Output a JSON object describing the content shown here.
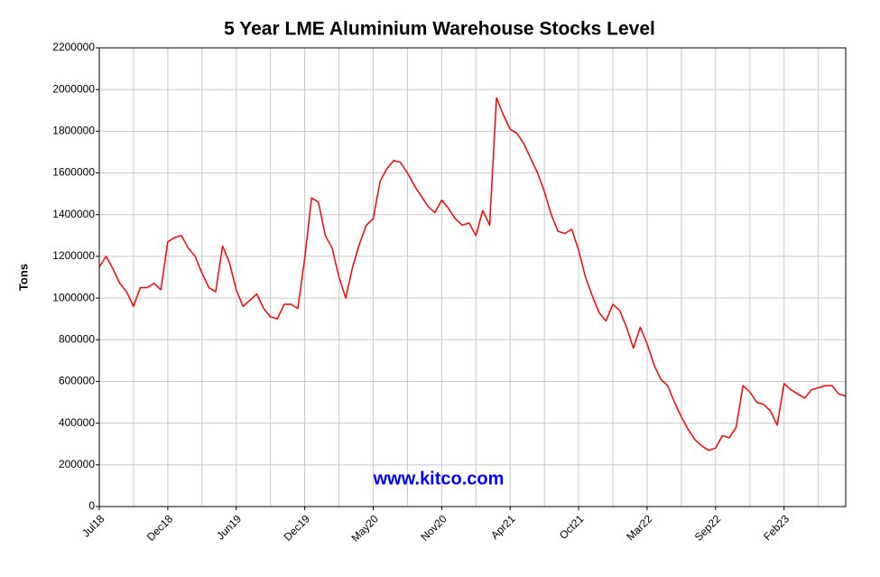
{
  "chart_data": {
    "type": "line",
    "title": "5 Year LME Aluminium Warehouse Stocks Level",
    "y_label": "Tons",
    "watermark": "www.kitco.com",
    "xlim": [
      0,
      109
    ],
    "xticks": [
      {
        "value": 0,
        "label": "Jul18"
      },
      {
        "value": 10,
        "label": "Dec18"
      },
      {
        "value": 20,
        "label": "Jun19"
      },
      {
        "value": 30,
        "label": "Dec19"
      },
      {
        "value": 40,
        "label": "May20"
      },
      {
        "value": 50,
        "label": "Nov20"
      },
      {
        "value": 60,
        "label": "Apr21"
      },
      {
        "value": 70,
        "label": "Oct21"
      },
      {
        "value": 80,
        "label": "Mar22"
      },
      {
        "value": 90,
        "label": "Sep22"
      },
      {
        "value": 100,
        "label": "Feb23"
      }
    ],
    "ylim": [
      0,
      2200000
    ],
    "yticks": [
      0,
      200000,
      400000,
      600000,
      800000,
      1000000,
      1200000,
      1400000,
      1600000,
      1800000,
      2000000,
      2200000
    ],
    "grid": true,
    "series": [
      {
        "name": "Tons",
        "color": "#ff0000",
        "values": [
          1150000,
          1200000,
          1140000,
          1070000,
          1030000,
          960000,
          1050000,
          1050000,
          1070000,
          1040000,
          1270000,
          1290000,
          1300000,
          1240000,
          1200000,
          1120000,
          1050000,
          1030000,
          1250000,
          1170000,
          1040000,
          960000,
          990000,
          1020000,
          950000,
          910000,
          900000,
          970000,
          970000,
          950000,
          1190000,
          1480000,
          1460000,
          1300000,
          1240000,
          1100000,
          1000000,
          1150000,
          1260000,
          1350000,
          1380000,
          1560000,
          1620000,
          1660000,
          1650000,
          1600000,
          1540000,
          1490000,
          1440000,
          1410000,
          1470000,
          1430000,
          1380000,
          1350000,
          1360000,
          1300000,
          1420000,
          1350000,
          1960000,
          1880000,
          1810000,
          1790000,
          1740000,
          1670000,
          1600000,
          1510000,
          1400000,
          1320000,
          1310000,
          1330000,
          1230000,
          1100000,
          1010000,
          930000,
          890000,
          970000,
          940000,
          860000,
          760000,
          860000,
          780000,
          680000,
          610000,
          580000,
          500000,
          430000,
          370000,
          320000,
          290000,
          270000,
          280000,
          340000,
          330000,
          380000,
          580000,
          550000,
          500000,
          490000,
          460000,
          390000,
          590000,
          560000,
          540000,
          520000,
          560000,
          570000,
          580000,
          580000,
          540000,
          530000
        ]
      }
    ]
  }
}
